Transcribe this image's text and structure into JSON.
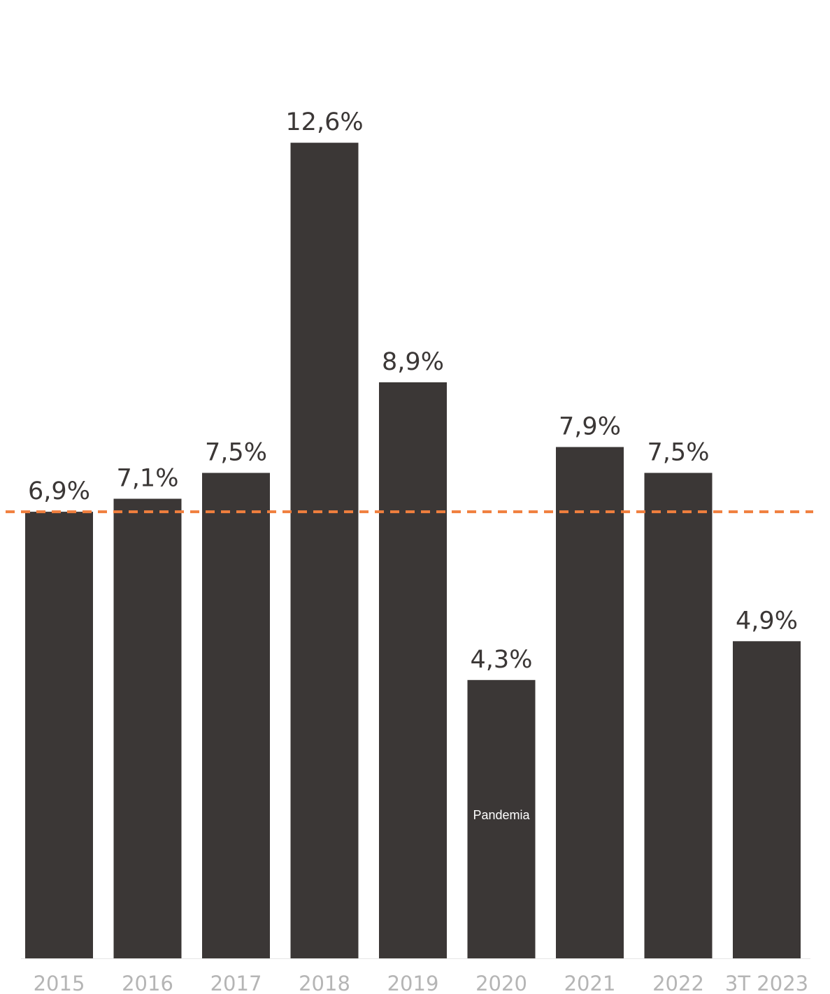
{
  "chart_data": {
    "type": "bar",
    "categories": [
      "2015",
      "2016",
      "2017",
      "2018",
      "2019",
      "2020",
      "2021",
      "2022",
      "3T 2023"
    ],
    "values": [
      6.9,
      7.1,
      7.5,
      12.6,
      8.9,
      4.3,
      7.9,
      7.5,
      4.9
    ],
    "value_labels": [
      "6,9%",
      "7,1%",
      "7,5%",
      "12,6%",
      "8,9%",
      "4,3%",
      "7,9%",
      "7,5%",
      "4,9%"
    ],
    "title": "",
    "xlabel": "",
    "ylabel": "",
    "ylim": [
      0,
      14
    ],
    "grid": false,
    "reference_line": {
      "value": 6.9,
      "style": "dashed"
    },
    "annotations": [
      {
        "category": "2020",
        "text": "Pandemia"
      }
    ],
    "colors": {
      "bar": "#3b3736",
      "reference_line": "#f07f3e",
      "value_label": "#3b3736",
      "tick_label": "#b5b5b5",
      "annotation": "#ffffff",
      "baseline": "#e6e6e6"
    }
  }
}
